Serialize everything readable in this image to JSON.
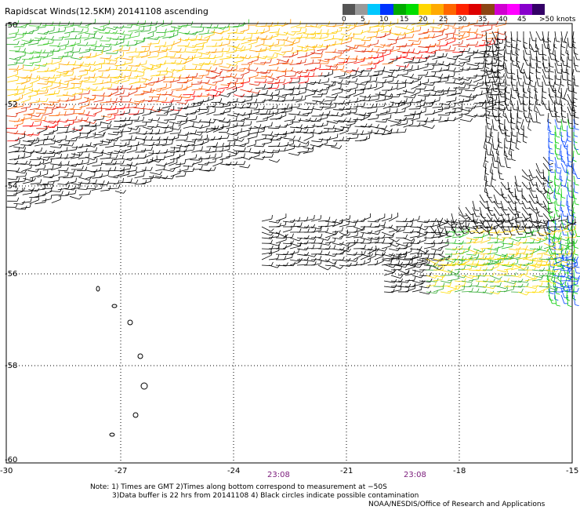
{
  "title": "Rapidscat Winds(12.5KM) 20141108 ascending",
  "legend": {
    "colors": [
      "#555555",
      "#999999",
      "#00c8ff",
      "#0033ff",
      "#00aa00",
      "#00dd00",
      "#ffd700",
      "#ffaa00",
      "#ff6600",
      "#ff2200",
      "#dd0000",
      "#8b4513",
      "#d000d0",
      "#ff00ff",
      "#8800cc",
      "#330066"
    ],
    "labels": [
      "0",
      "5",
      "10",
      "15",
      "20",
      "25",
      "30",
      "35",
      "40",
      "45",
      ">50 knots"
    ]
  },
  "map": {
    "lat_labels": [
      "-50",
      "-52",
      "-54",
      "-56",
      "-58",
      "-60"
    ],
    "lon_labels": [
      "-30",
      "-27",
      "-24",
      "-21",
      "-18",
      "-15"
    ],
    "times": [
      "23:08",
      "23:08"
    ]
  },
  "notes": {
    "line1": "Note: 1) Times are GMT 2)Times along bottom correspond to measurement at −50S",
    "line2": "3)Data buffer is 22 hrs from 20141108 4) Black circles indicate possible contamination"
  },
  "credit": "NOAA/NESDIS/Office of Research and Applications"
}
